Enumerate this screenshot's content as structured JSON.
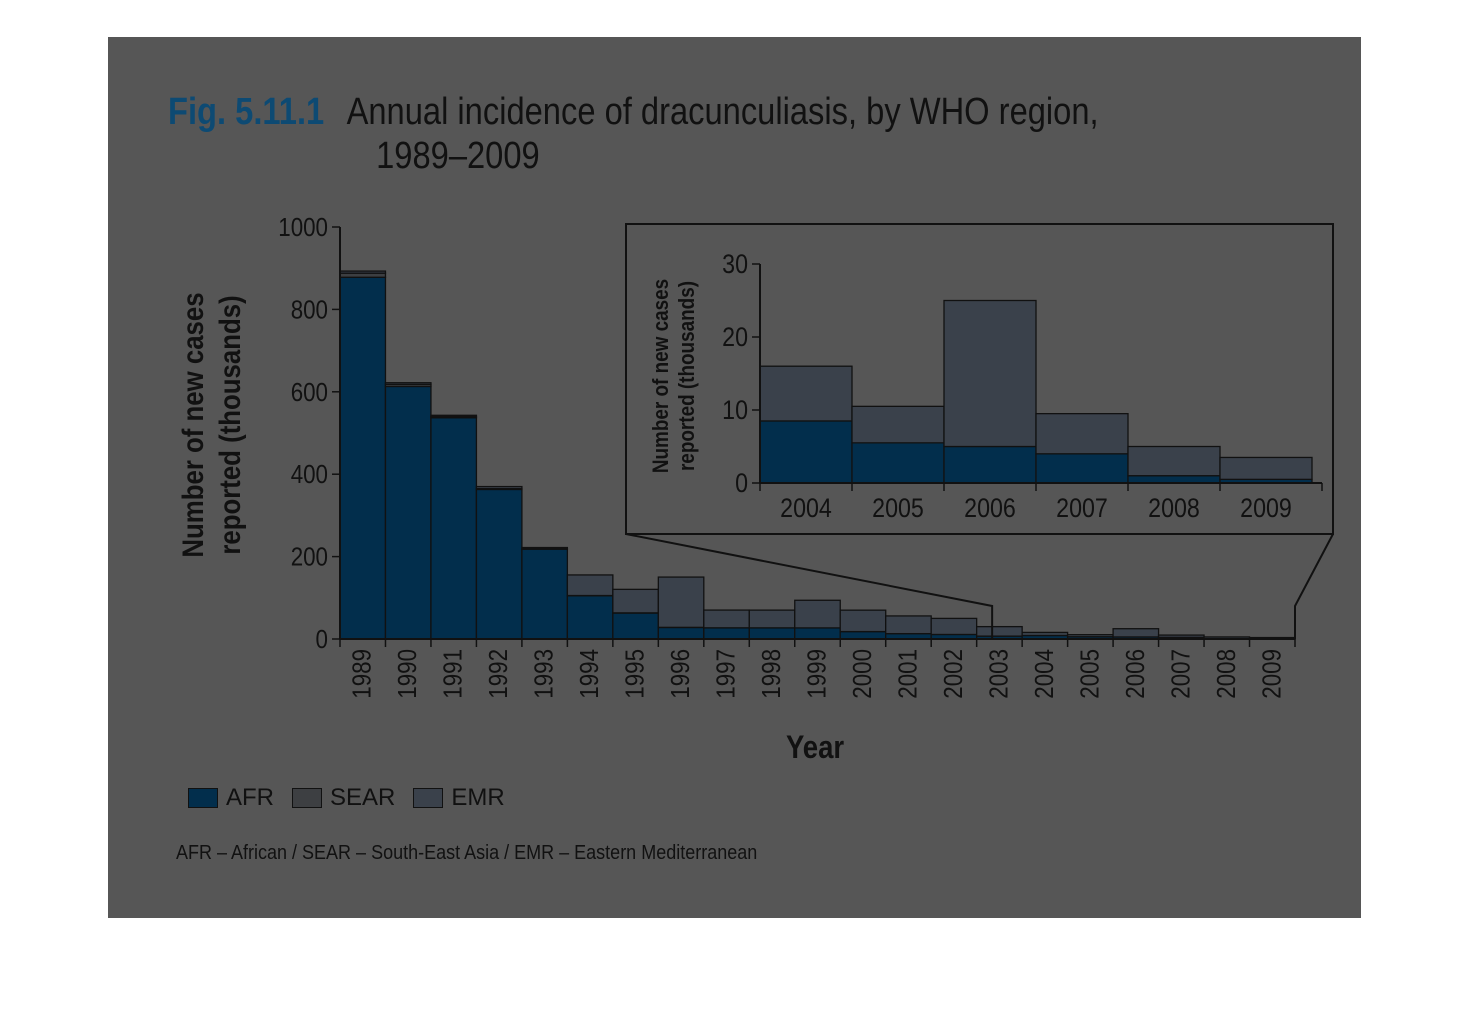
{
  "figure": {
    "label": "Fig. 5.11.1",
    "title_line1": "Annual incidence of dracunculiasis, by WHO region,",
    "title_line2": "1989–2009",
    "note": "AFR – African / SEAR – South-East Asia / EMR – Eastern Mediterranean"
  },
  "colors": {
    "panel": "#565656",
    "AFR": "#022e4c",
    "SEAR": "#3d3f42",
    "EMR": "#3a414b",
    "axis": "#111111",
    "fig_label": "#0d4a73"
  },
  "chart_data": [
    {
      "type": "bar",
      "stacked": true,
      "categories": [
        "1989",
        "1990",
        "1991",
        "1992",
        "1993",
        "1994",
        "1995",
        "1996",
        "1997",
        "1998",
        "1999",
        "2000",
        "2001",
        "2002",
        "2003",
        "2004",
        "2005",
        "2006",
        "2007",
        "2008",
        "2009"
      ],
      "series": [
        {
          "name": "AFR",
          "values": [
            878,
            613,
            537,
            363,
            218,
            105,
            63,
            28,
            27,
            27,
            27,
            18,
            13,
            11,
            7,
            8.5,
            5.5,
            5,
            4,
            1,
            0.5
          ]
        },
        {
          "name": "SEAR",
          "values": [
            10,
            5,
            3,
            2,
            1,
            0.5,
            0.5,
            0.3,
            0.2,
            0.1,
            0,
            0,
            0,
            0,
            0,
            0,
            0,
            0,
            0,
            0,
            0
          ]
        },
        {
          "name": "EMR",
          "values": [
            5,
            4,
            3,
            5,
            3,
            50,
            57,
            122,
            43,
            43,
            67,
            52,
            43,
            39,
            23,
            7.5,
            5,
            20,
            5.5,
            4,
            3
          ]
        }
      ],
      "xlabel": "Year",
      "ylabel": "Number of new cases reported (thousands)",
      "ylim": [
        0,
        1000
      ],
      "yticks": [
        0,
        200,
        400,
        600,
        800,
        1000
      ],
      "legend": "bottom-left"
    },
    {
      "type": "bar",
      "stacked": true,
      "inset": true,
      "categories": [
        "2004",
        "2005",
        "2006",
        "2007",
        "2008",
        "2009"
      ],
      "series": [
        {
          "name": "AFR",
          "values": [
            8.5,
            5.5,
            5,
            4,
            1,
            0.5
          ]
        },
        {
          "name": "EMR",
          "values": [
            7.5,
            5,
            20,
            5.5,
            4,
            3
          ]
        }
      ],
      "ylabel": "Number of new cases reported (thousands)",
      "ylim": [
        0,
        30
      ],
      "yticks": [
        0,
        10,
        20,
        30
      ]
    }
  ],
  "legend_items": [
    {
      "key": "AFR",
      "label": "AFR"
    },
    {
      "key": "SEAR",
      "label": "SEAR"
    },
    {
      "key": "EMR",
      "label": "EMR"
    }
  ]
}
